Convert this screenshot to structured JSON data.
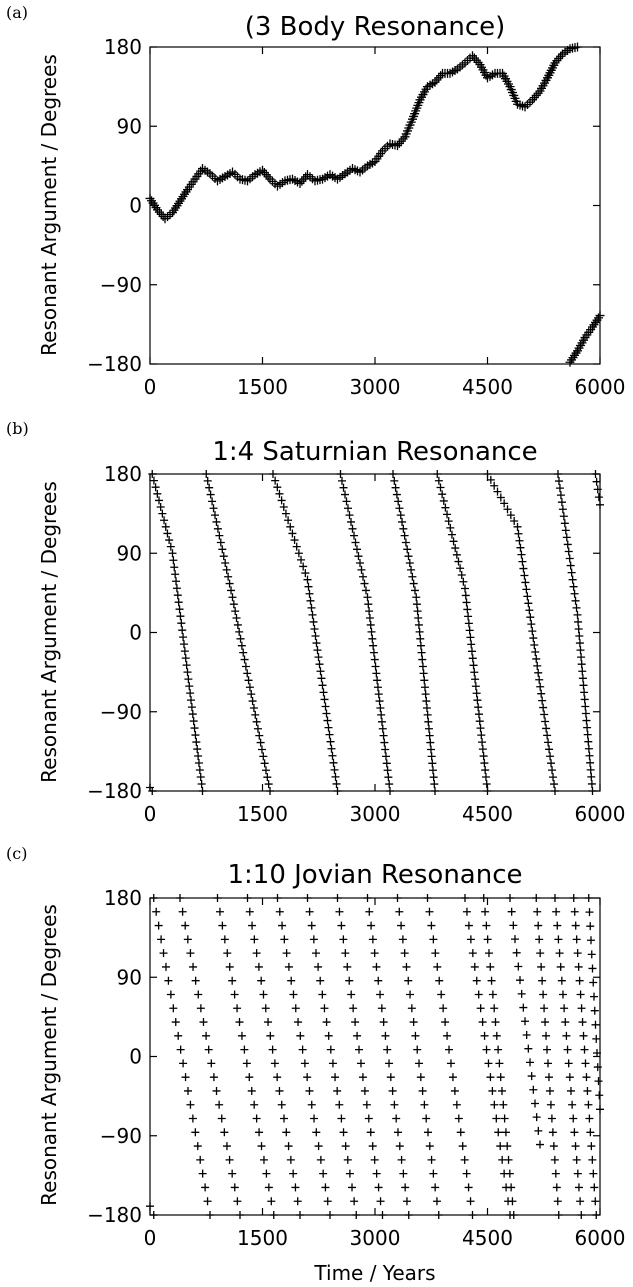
{
  "figure": {
    "xlabel": "Time / Years",
    "ylabel": "Resonant Argument / Degrees"
  },
  "chart_data": [
    {
      "type": "scatter",
      "panel_label": "(a)",
      "title": "(3 Body Resonance)",
      "xlabel": "",
      "ylabel": "Resonant Argument / Degrees",
      "xlim": [
        0,
        6000
      ],
      "ylim": [
        -180,
        180
      ],
      "x_ticks": [
        0,
        1500,
        3000,
        4500,
        6000
      ],
      "y_ticks": [
        180,
        90,
        0,
        -90,
        -180
      ],
      "x_tick_labels": [
        "0",
        "1500",
        "3000",
        "4500",
        "6000"
      ],
      "y_tick_labels": [
        "180",
        "90",
        "0",
        "−90",
        "−180"
      ],
      "marker": "+",
      "series": [
        {
          "x": [
            0,
            100,
            200,
            300,
            400,
            500,
            600,
            700,
            800,
            900,
            1000,
            1100,
            1200,
            1300,
            1400,
            1500,
            1600,
            1700,
            1800,
            1900,
            2000,
            2100,
            2200,
            2300,
            2400,
            2500,
            2600,
            2700,
            2800,
            2900,
            3000,
            3100,
            3200,
            3300,
            3400,
            3500,
            3600,
            3700,
            3800,
            3900,
            4000,
            4100,
            4200,
            4300,
            4400,
            4500,
            4600,
            4700,
            4800,
            4900,
            5000,
            5100,
            5200,
            5300,
            5400,
            5500,
            5600,
            5700
          ],
          "y": [
            8,
            -5,
            -15,
            -8,
            5,
            18,
            30,
            42,
            36,
            28,
            33,
            38,
            30,
            28,
            35,
            40,
            30,
            22,
            28,
            30,
            25,
            35,
            28,
            30,
            35,
            30,
            36,
            42,
            38,
            45,
            50,
            62,
            70,
            68,
            78,
            98,
            120,
            135,
            140,
            150,
            150,
            155,
            162,
            170,
            160,
            145,
            150,
            150,
            135,
            115,
            112,
            120,
            130,
            145,
            162,
            172,
            178,
            180
          ]
        },
        {
          "x": [
            5600,
            5700,
            5800,
            5900,
            6000
          ],
          "y": [
            -178,
            -165,
            -150,
            -138,
            -125
          ]
        }
      ]
    },
    {
      "type": "scatter",
      "panel_label": "(b)",
      "title": "1:4 Saturnian Resonance",
      "xlabel": "",
      "ylabel": "Resonant Argument / Degrees",
      "xlim": [
        0,
        6000
      ],
      "ylim": [
        -180,
        180
      ],
      "x_ticks": [
        0,
        1500,
        3000,
        4500,
        6000
      ],
      "y_ticks": [
        180,
        90,
        0,
        -90,
        -180
      ],
      "x_tick_labels": [
        "0",
        "1500",
        "3000",
        "4500",
        "6000"
      ],
      "y_tick_labels": [
        "180",
        "90",
        "0",
        "−90",
        "−180"
      ],
      "marker": "+",
      "series": [
        {
          "x": [
            0,
            30
          ],
          "y": [
            -176,
            -180
          ]
        },
        {
          "x": [
            30,
            300,
            700
          ],
          "y": [
            180,
            90,
            -180
          ]
        },
        {
          "x": [
            750,
            1100,
            1600
          ],
          "y": [
            180,
            40,
            -180
          ]
        },
        {
          "x": [
            1640,
            2100,
            2500
          ],
          "y": [
            180,
            60,
            -180
          ]
        },
        {
          "x": [
            2540,
            2900,
            3200
          ],
          "y": [
            180,
            40,
            -180
          ]
        },
        {
          "x": [
            3240,
            3550,
            3800
          ],
          "y": [
            180,
            40,
            -180
          ]
        },
        {
          "x": [
            3830,
            4200,
            4500
          ],
          "y": [
            180,
            50,
            -180
          ]
        },
        {
          "x": [
            4500,
            4900,
            5400
          ],
          "y": [
            180,
            120,
            -180
          ]
        },
        {
          "x": [
            5440,
            5700,
            5900
          ],
          "y": [
            180,
            20,
            -180
          ]
        },
        {
          "x": [
            5940,
            6000
          ],
          "y": [
            180,
            145
          ]
        }
      ]
    },
    {
      "type": "scatter",
      "panel_label": "(c)",
      "title": "1:10 Jovian Resonance",
      "xlabel": "Time / Years",
      "ylabel": "Resonant Argument / Degrees",
      "xlim": [
        0,
        6000
      ],
      "ylim": [
        -180,
        180
      ],
      "x_ticks": [
        0,
        1500,
        3000,
        4500,
        6000
      ],
      "y_ticks": [
        180,
        90,
        0,
        -90,
        -180
      ],
      "x_tick_labels": [
        "0",
        "1500",
        "3000",
        "4500",
        "6000"
      ],
      "y_tick_labels": [
        "180",
        "90",
        "0",
        "−90",
        "−180"
      ],
      "marker": "+",
      "series": [
        {
          "x": [
            0,
            50
          ],
          "y": [
            -170,
            -180
          ]
        },
        {
          "x": [
            50,
            800
          ],
          "y": [
            180,
            -180
          ]
        },
        {
          "x": [
            400,
            1200
          ],
          "y": [
            180,
            -180
          ]
        },
        {
          "x": [
            900,
            1650
          ],
          "y": [
            180,
            -180
          ]
        },
        {
          "x": [
            1300,
            2000
          ],
          "y": [
            180,
            -180
          ]
        },
        {
          "x": [
            1700,
            2400
          ],
          "y": [
            180,
            -180
          ]
        },
        {
          "x": [
            2100,
            2750
          ],
          "y": [
            180,
            -180
          ]
        },
        {
          "x": [
            2500,
            3100
          ],
          "y": [
            180,
            -180
          ]
        },
        {
          "x": [
            2900,
            3450
          ],
          "y": [
            180,
            -180
          ]
        },
        {
          "x": [
            3300,
            3850
          ],
          "y": [
            180,
            -180
          ]
        },
        {
          "x": [
            3700,
            4300
          ],
          "y": [
            180,
            -180
          ]
        },
        {
          "x": [
            4200,
            4800
          ],
          "y": [
            180,
            -180
          ]
        },
        {
          "x": [
            4450,
            4850
          ],
          "y": [
            180,
            -180
          ]
        },
        {
          "x": [
            4800,
            5200
          ],
          "y": [
            180,
            -100
          ]
        },
        {
          "x": [
            5150,
            5450
          ],
          "y": [
            180,
            -180
          ]
        },
        {
          "x": [
            5400,
            5750
          ],
          "y": [
            180,
            -180
          ]
        },
        {
          "x": [
            5650,
            5950
          ],
          "y": [
            180,
            -180
          ]
        },
        {
          "x": [
            5850,
            6000
          ],
          "y": [
            180,
            -60
          ]
        }
      ]
    }
  ]
}
